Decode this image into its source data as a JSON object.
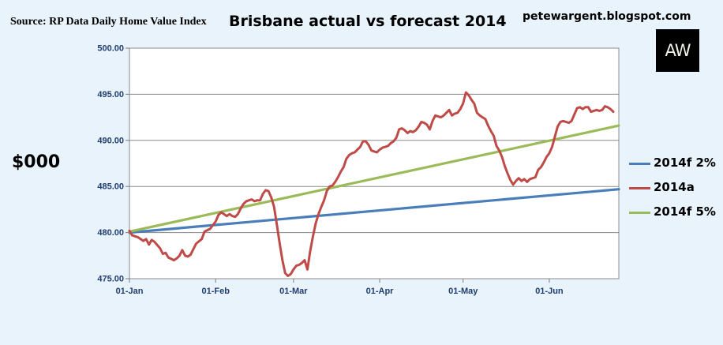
{
  "header": {
    "source": "Source: RP Data Daily Home Value Index",
    "site": "petewargent.blogspot.com",
    "logo_text": "AW"
  },
  "chart_data": {
    "type": "line",
    "title": "Brisbane actual vs forecast 2014",
    "ylabel": "$000",
    "xlabel": "",
    "ylim": [
      475,
      500
    ],
    "yticks": [
      "475.00",
      "480.00",
      "485.00",
      "490.00",
      "495.00",
      "500.00"
    ],
    "xticks": [
      {
        "label": "01-Jan",
        "day": 0
      },
      {
        "label": "01-Feb",
        "day": 31
      },
      {
        "label": "01-Mar",
        "day": 59
      },
      {
        "label": "01-Apr",
        "day": 90
      },
      {
        "label": "01-May",
        "day": 120
      },
      {
        "label": "01-Jun",
        "day": 151
      }
    ],
    "xlim_days": [
      0,
      176
    ],
    "grid": "horizontal",
    "legend_position": "right",
    "series": [
      {
        "name": "2014f 2%",
        "color": "#4a7ebb",
        "points": [
          [
            0,
            480.0
          ],
          [
            176,
            484.7
          ]
        ]
      },
      {
        "name": "2014a",
        "color": "#be4b48",
        "points": [
          [
            0,
            480.2
          ],
          [
            1,
            479.7
          ],
          [
            3,
            479.5
          ],
          [
            5,
            479.1
          ],
          [
            6,
            479.3
          ],
          [
            7,
            478.7
          ],
          [
            8,
            479.2
          ],
          [
            9,
            479.0
          ],
          [
            11,
            478.3
          ],
          [
            12,
            477.7
          ],
          [
            13,
            477.8
          ],
          [
            14,
            477.3
          ],
          [
            16,
            477.0
          ],
          [
            17,
            477.2
          ],
          [
            18,
            477.5
          ],
          [
            19,
            478.1
          ],
          [
            20,
            477.5
          ],
          [
            21,
            477.4
          ],
          [
            22,
            477.6
          ],
          [
            24,
            478.8
          ],
          [
            26,
            479.3
          ],
          [
            27,
            480.1
          ],
          [
            29,
            480.4
          ],
          [
            31,
            481.2
          ],
          [
            32,
            481.9
          ],
          [
            33,
            482.2
          ],
          [
            34,
            482.0
          ],
          [
            35,
            481.8
          ],
          [
            36,
            482.0
          ],
          [
            37,
            481.8
          ],
          [
            38,
            481.7
          ],
          [
            39,
            482.0
          ],
          [
            40,
            482.6
          ],
          [
            41,
            483.1
          ],
          [
            42,
            483.4
          ],
          [
            43,
            483.5
          ],
          [
            44,
            483.6
          ],
          [
            45,
            483.4
          ],
          [
            46,
            483.5
          ],
          [
            47,
            483.5
          ],
          [
            48,
            484.2
          ],
          [
            49,
            484.6
          ],
          [
            50,
            484.5
          ],
          [
            51,
            483.8
          ],
          [
            52,
            482.8
          ],
          [
            53,
            480.9
          ],
          [
            54,
            478.9
          ],
          [
            55,
            477.0
          ],
          [
            56,
            475.6
          ],
          [
            57,
            475.3
          ],
          [
            58,
            475.5
          ],
          [
            59,
            476.0
          ],
          [
            60,
            476.4
          ],
          [
            61,
            476.5
          ],
          [
            62,
            476.7
          ],
          [
            63,
            477.0
          ],
          [
            64,
            476.0
          ],
          [
            65,
            478.0
          ],
          [
            66,
            479.6
          ],
          [
            67,
            481.0
          ],
          [
            68,
            482.0
          ],
          [
            69,
            482.8
          ],
          [
            70,
            483.5
          ],
          [
            71,
            484.5
          ],
          [
            72,
            485.0
          ],
          [
            73,
            485.1
          ],
          [
            74,
            485.5
          ],
          [
            75,
            486.0
          ],
          [
            76,
            486.6
          ],
          [
            77,
            487.1
          ],
          [
            78,
            488.0
          ],
          [
            79,
            488.4
          ],
          [
            80,
            488.6
          ],
          [
            81,
            488.7
          ],
          [
            82,
            489.0
          ],
          [
            83,
            489.3
          ],
          [
            84,
            489.9
          ],
          [
            85,
            489.9
          ],
          [
            86,
            489.5
          ],
          [
            87,
            488.9
          ],
          [
            88,
            488.8
          ],
          [
            89,
            488.7
          ],
          [
            90,
            489.0
          ],
          [
            91,
            489.2
          ],
          [
            92,
            489.3
          ],
          [
            93,
            489.4
          ],
          [
            94,
            489.7
          ],
          [
            95,
            489.9
          ],
          [
            96,
            490.3
          ],
          [
            97,
            491.2
          ],
          [
            98,
            491.3
          ],
          [
            99,
            491.1
          ],
          [
            100,
            490.8
          ],
          [
            101,
            491.0
          ],
          [
            102,
            490.9
          ],
          [
            103,
            491.1
          ],
          [
            104,
            491.5
          ],
          [
            105,
            492.0
          ],
          [
            106,
            491.9
          ],
          [
            107,
            491.7
          ],
          [
            108,
            491.2
          ],
          [
            109,
            492.1
          ],
          [
            110,
            492.7
          ],
          [
            111,
            492.6
          ],
          [
            112,
            492.5
          ],
          [
            113,
            492.7
          ],
          [
            114,
            493.0
          ],
          [
            115,
            493.3
          ],
          [
            116,
            492.7
          ],
          [
            117,
            492.9
          ],
          [
            118,
            493.0
          ],
          [
            119,
            493.4
          ],
          [
            120,
            494.0
          ],
          [
            121,
            495.2
          ],
          [
            122,
            494.9
          ],
          [
            123,
            494.4
          ],
          [
            124,
            494.0
          ],
          [
            125,
            493.0
          ],
          [
            126,
            492.7
          ],
          [
            127,
            492.5
          ],
          [
            128,
            492.3
          ],
          [
            129,
            491.6
          ],
          [
            130,
            491.0
          ],
          [
            131,
            490.5
          ],
          [
            132,
            489.4
          ],
          [
            133,
            488.9
          ],
          [
            134,
            488.2
          ],
          [
            135,
            487.2
          ],
          [
            136,
            486.4
          ],
          [
            137,
            485.7
          ],
          [
            138,
            485.2
          ],
          [
            139,
            485.6
          ],
          [
            140,
            485.9
          ],
          [
            141,
            485.6
          ],
          [
            142,
            485.8
          ],
          [
            143,
            485.5
          ],
          [
            144,
            485.8
          ],
          [
            145,
            485.9
          ],
          [
            146,
            486.0
          ],
          [
            147,
            486.8
          ],
          [
            148,
            487.1
          ],
          [
            149,
            487.6
          ],
          [
            150,
            488.2
          ],
          [
            151,
            488.6
          ],
          [
            152,
            489.3
          ],
          [
            153,
            490.4
          ],
          [
            154,
            491.5
          ],
          [
            155,
            492.0
          ],
          [
            156,
            492.1
          ],
          [
            157,
            492.0
          ],
          [
            158,
            491.9
          ],
          [
            159,
            492.1
          ],
          [
            160,
            492.8
          ],
          [
            161,
            493.5
          ],
          [
            162,
            493.6
          ],
          [
            163,
            493.4
          ],
          [
            164,
            493.6
          ],
          [
            165,
            493.6
          ],
          [
            166,
            493.1
          ],
          [
            167,
            493.2
          ],
          [
            168,
            493.3
          ],
          [
            169,
            493.2
          ],
          [
            170,
            493.3
          ],
          [
            171,
            493.7
          ],
          [
            172,
            493.6
          ],
          [
            173,
            493.4
          ],
          [
            174,
            493.1
          ]
        ]
      },
      {
        "name": "2014f 5%",
        "color": "#9bbb59",
        "points": [
          [
            0,
            480.1
          ],
          [
            176,
            491.6
          ]
        ]
      }
    ]
  }
}
